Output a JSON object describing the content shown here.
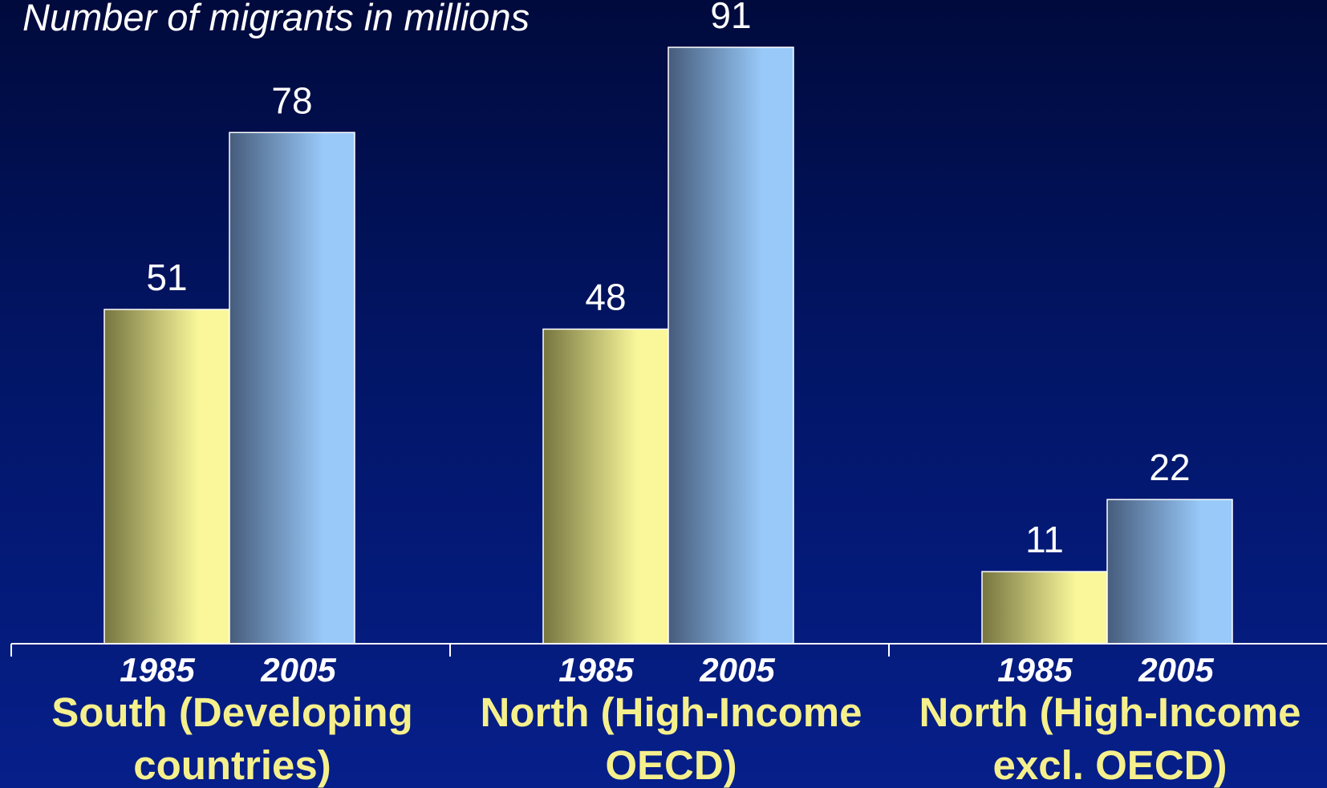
{
  "chart_data": {
    "type": "bar",
    "title": "Number of migrants in millions",
    "categories": [
      "South (Developing countries)",
      "North (High-Income OECD)",
      "North (High-Income excl. OECD)"
    ],
    "category_lines": [
      [
        "South (Developing",
        "countries)"
      ],
      [
        "North (High-Income",
        "OECD)"
      ],
      [
        "North (High-Income",
        "excl. OECD)"
      ]
    ],
    "series": [
      {
        "label": "1985",
        "values": [
          51,
          48,
          11
        ]
      },
      {
        "label": "2005",
        "values": [
          78,
          91,
          22
        ]
      }
    ],
    "ylim": [
      0,
      91
    ],
    "grid": false,
    "legend": "none",
    "colors": {
      "s1985_dark": "#767540",
      "s1985_light": "#f9f79a",
      "s2005_dark": "#465c7c",
      "s2005_light": "#98c9f9",
      "axis": "#ffffff",
      "group_label": "#f5f08c"
    }
  }
}
